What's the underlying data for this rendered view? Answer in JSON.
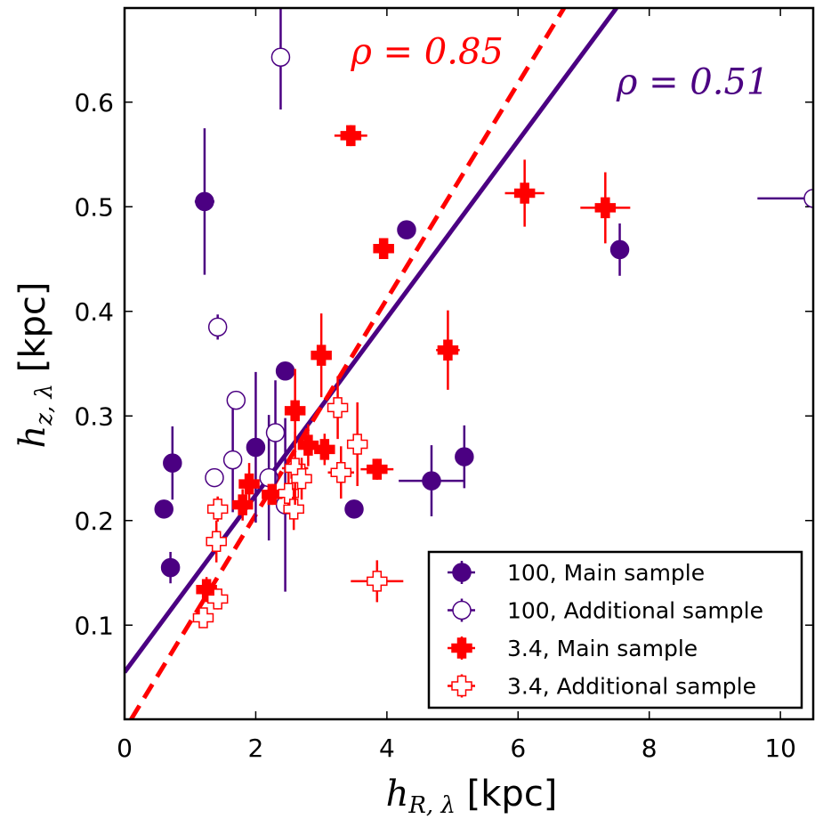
{
  "chart_data": {
    "type": "scatter",
    "xlim": [
      0,
      10.5
    ],
    "ylim": [
      0.01,
      0.69
    ],
    "xticks": [
      0,
      2,
      4,
      6,
      8,
      10
    ],
    "yticks": [
      0.1,
      0.2,
      0.3,
      0.4,
      0.5,
      0.6
    ],
    "xtick_labels": [
      "0",
      "2",
      "4",
      "6",
      "8",
      "10"
    ],
    "ytick_labels": [
      "0.1",
      "0.2",
      "0.3",
      "0.4",
      "0.5",
      "0.6"
    ],
    "xlabel": {
      "math": "h",
      "sub": "R, λ",
      "unit": " [kpc]"
    },
    "ylabel": {
      "math": "h",
      "sub": "z, λ",
      "unit": " [kpc]"
    },
    "colors": {
      "purple": "#4b0082",
      "red": "#ff0000"
    },
    "fit_lines": [
      {
        "name": "100 fit",
        "color": "#4b0082",
        "style": "solid",
        "x": [
          0,
          7.5
        ],
        "y": [
          0.055,
          0.69
        ]
      },
      {
        "name": "3.4 fit",
        "color": "#ff0000",
        "style": "dashed",
        "x": [
          0.1,
          6.7
        ],
        "y": [
          0.01,
          0.69
        ]
      }
    ],
    "annotations": [
      {
        "text": "ρ = 0.85",
        "color": "#ff0000",
        "x": 3.45,
        "y": 0.637
      },
      {
        "text": "ρ = 0.51",
        "color": "#4b0082",
        "x": 7.5,
        "y": 0.608
      }
    ],
    "legend": {
      "position": "lower right",
      "entries": [
        {
          "label": "100, Main sample",
          "marker": "circle",
          "filled": true,
          "color": "#4b0082"
        },
        {
          "label": "100, Additional sample",
          "marker": "circle",
          "filled": false,
          "color": "#4b0082"
        },
        {
          "label": "3.4, Main sample",
          "marker": "plus",
          "filled": true,
          "color": "#ff0000"
        },
        {
          "label": "3.4, Additional sample",
          "marker": "plus",
          "filled": false,
          "color": "#ff0000"
        }
      ]
    },
    "series": [
      {
        "name": "100, Main sample",
        "marker": "circle",
        "filled": true,
        "color": "#4b0082",
        "points": [
          {
            "x": 0.6,
            "y": 0.211,
            "xerr": 0,
            "yerr": 0
          },
          {
            "x": 0.7,
            "y": 0.155,
            "xerr": 0,
            "yerr": 0.015
          },
          {
            "x": 0.73,
            "y": 0.255,
            "xerr": 0,
            "yerr": 0.035
          },
          {
            "x": 1.22,
            "y": 0.505,
            "xerr": 0.15,
            "yerr": 0.07
          },
          {
            "x": 2.0,
            "y": 0.27,
            "xerr": 0,
            "yerr": 0.072
          },
          {
            "x": 2.45,
            "y": 0.343,
            "xerr": 0,
            "yerr": 0
          },
          {
            "x": 3.5,
            "y": 0.211,
            "xerr": 0,
            "yerr": 0
          },
          {
            "x": 4.3,
            "y": 0.478,
            "xerr": 0,
            "yerr": 0
          },
          {
            "x": 4.68,
            "y": 0.238,
            "xerr": 0.5,
            "yerr": 0.034
          },
          {
            "x": 5.18,
            "y": 0.261,
            "xerr": 0,
            "yerr": 0.03
          },
          {
            "x": 7.55,
            "y": 0.459,
            "xerr": 0,
            "yerr": 0.025
          }
        ]
      },
      {
        "name": "100, Additional sample",
        "marker": "circle",
        "filled": false,
        "color": "#4b0082",
        "points": [
          {
            "x": 1.37,
            "y": 0.241,
            "xerr": 0,
            "yerr": 0
          },
          {
            "x": 1.42,
            "y": 0.385,
            "xerr": 0,
            "yerr": 0.012
          },
          {
            "x": 1.65,
            "y": 0.258,
            "xerr": 0,
            "yerr": 0.05
          },
          {
            "x": 1.7,
            "y": 0.315,
            "xerr": 0,
            "yerr": 0
          },
          {
            "x": 2.2,
            "y": 0.241,
            "xerr": 0,
            "yerr": 0.06
          },
          {
            "x": 2.3,
            "y": 0.284,
            "xerr": 0,
            "yerr": 0.05
          },
          {
            "x": 2.38,
            "y": 0.643,
            "xerr": 0,
            "yerr": 0.05
          },
          {
            "x": 2.45,
            "y": 0.215,
            "xerr": 0,
            "yerr": 0.083
          },
          {
            "x": 10.5,
            "y": 0.508,
            "xerr": 0.85,
            "yerr": 0
          }
        ]
      },
      {
        "name": "3.4, Main sample",
        "marker": "plus",
        "filled": true,
        "color": "#ff0000",
        "points": [
          {
            "x": 1.25,
            "y": 0.134,
            "xerr": 0.1,
            "yerr": 0.012
          },
          {
            "x": 1.8,
            "y": 0.215,
            "xerr": 0.12,
            "yerr": 0.015
          },
          {
            "x": 1.9,
            "y": 0.235,
            "xerr": 0.1,
            "yerr": 0.02
          },
          {
            "x": 2.25,
            "y": 0.225,
            "xerr": 0.12,
            "yerr": 0.01
          },
          {
            "x": 2.6,
            "y": 0.305,
            "xerr": 0.15,
            "yerr": 0.04
          },
          {
            "x": 2.8,
            "y": 0.272,
            "xerr": 0.15,
            "yerr": 0.02
          },
          {
            "x": 3.0,
            "y": 0.358,
            "xerr": 0.15,
            "yerr": 0.04
          },
          {
            "x": 3.05,
            "y": 0.268,
            "xerr": 0.15,
            "yerr": 0.015
          },
          {
            "x": 3.45,
            "y": 0.568,
            "xerr": 0.25,
            "yerr": 0.01
          },
          {
            "x": 3.85,
            "y": 0.249,
            "xerr": 0.25,
            "yerr": 0.01
          },
          {
            "x": 3.95,
            "y": 0.46,
            "xerr": 0.12,
            "yerr": 0.01
          },
          {
            "x": 4.93,
            "y": 0.363,
            "xerr": 0.18,
            "yerr": 0.038
          },
          {
            "x": 6.1,
            "y": 0.513,
            "xerr": 0.3,
            "yerr": 0.032
          },
          {
            "x": 7.33,
            "y": 0.499,
            "xerr": 0.38,
            "yerr": 0.034
          }
        ]
      },
      {
        "name": "3.4, Additional sample",
        "marker": "plus",
        "filled": false,
        "color": "#ff0000",
        "points": [
          {
            "x": 1.2,
            "y": 0.107,
            "xerr": 0.12,
            "yerr": 0.008
          },
          {
            "x": 1.4,
            "y": 0.18,
            "xerr": 0.1,
            "yerr": 0.02
          },
          {
            "x": 1.42,
            "y": 0.211,
            "xerr": 0.12,
            "yerr": 0.012
          },
          {
            "x": 1.42,
            "y": 0.125,
            "xerr": 0.15,
            "yerr": 0.01
          },
          {
            "x": 2.5,
            "y": 0.226,
            "xerr": 0.15,
            "yerr": 0.02
          },
          {
            "x": 2.58,
            "y": 0.211,
            "xerr": 0.15,
            "yerr": 0.02
          },
          {
            "x": 2.6,
            "y": 0.25,
            "xerr": 0.2,
            "yerr": 0.035
          },
          {
            "x": 2.7,
            "y": 0.24,
            "xerr": 0.12,
            "yerr": 0.02
          },
          {
            "x": 3.25,
            "y": 0.308,
            "xerr": 0.12,
            "yerr": 0.03
          },
          {
            "x": 3.3,
            "y": 0.246,
            "xerr": 0.2,
            "yerr": 0.025
          },
          {
            "x": 3.55,
            "y": 0.273,
            "xerr": 0.15,
            "yerr": 0.04
          },
          {
            "x": 3.85,
            "y": 0.142,
            "xerr": 0.4,
            "yerr": 0.02
          }
        ]
      }
    ]
  }
}
